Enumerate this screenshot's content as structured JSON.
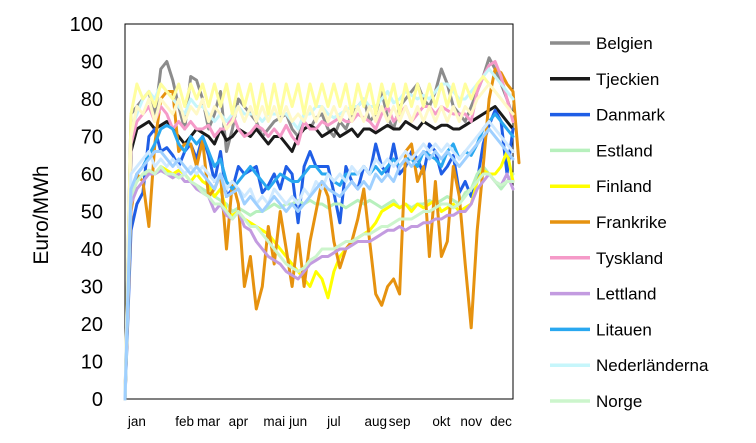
{
  "chart_data": {
    "type": "line",
    "ylabel": "Euro/MWh",
    "xlabel": "",
    "title": "",
    "ylim": [
      0,
      100
    ],
    "yticks": [
      0,
      10,
      20,
      30,
      40,
      50,
      60,
      70,
      80,
      90,
      100
    ],
    "x_points_per_year": 53,
    "x_month_labels": [
      {
        "label": "jan",
        "x": 2
      },
      {
        "label": "feb",
        "x": 10
      },
      {
        "label": "mar",
        "x": 14
      },
      {
        "label": "apr",
        "x": 19
      },
      {
        "label": "mai",
        "x": 25
      },
      {
        "label": "jun",
        "x": 29
      },
      {
        "label": "jul",
        "x": 35
      },
      {
        "label": "aug",
        "x": 42
      },
      {
        "label": "sep",
        "x": 46
      },
      {
        "label": "okt",
        "x": 53
      },
      {
        "label": "nov",
        "x": 58
      },
      {
        "label": "dec",
        "x": 63
      }
    ],
    "legend_position": "right",
    "grid": false,
    "series": [
      {
        "name": "Belgien",
        "color": "#8c8c8c",
        "values": [
          0,
          76,
          78,
          80,
          82,
          75,
          88,
          90,
          85,
          78,
          72,
          86,
          85,
          80,
          72,
          76,
          82,
          66,
          72,
          80,
          78,
          76,
          74,
          70,
          72,
          74,
          75,
          76,
          72,
          70,
          74,
          72,
          75,
          76,
          72,
          70,
          74,
          72,
          76,
          78,
          80,
          74,
          76,
          82,
          75,
          72,
          78,
          80,
          82,
          84,
          80,
          78,
          82,
          88,
          84,
          78,
          76,
          74,
          78,
          82,
          86,
          91,
          88,
          84,
          80,
          75
        ]
      },
      {
        "name": "Tjeckien",
        "color": "#1a1a1a",
        "values": [
          0,
          66,
          72,
          73,
          74,
          72,
          73,
          74,
          72,
          70,
          68,
          70,
          72,
          71,
          70,
          68,
          72,
          69,
          70,
          72,
          71,
          70,
          72,
          70,
          68,
          70,
          70,
          68,
          66,
          70,
          72,
          73,
          72,
          70,
          71,
          72,
          70,
          71,
          72,
          70,
          72,
          72,
          71,
          72,
          73,
          72,
          72,
          74,
          73,
          72,
          74,
          73,
          72,
          73,
          73,
          72,
          72,
          73,
          74,
          75,
          76,
          77,
          78,
          76,
          74,
          72
        ]
      },
      {
        "name": "Danmark",
        "color": "#1f5ee6",
        "values": [
          0,
          45,
          52,
          55,
          70,
          72,
          66,
          67,
          65,
          62,
          66,
          68,
          64,
          70,
          65,
          58,
          66,
          54,
          56,
          62,
          60,
          61,
          62,
          55,
          57,
          60,
          56,
          62,
          60,
          47,
          62,
          66,
          62,
          62,
          62,
          55,
          47,
          62,
          58,
          56,
          62,
          60,
          68,
          62,
          60,
          68,
          60,
          62,
          66,
          64,
          60,
          68,
          66,
          60,
          62,
          65,
          55,
          58,
          54,
          58,
          68,
          73,
          77,
          74,
          60,
          72
        ]
      },
      {
        "name": "Estland",
        "color": "#b7f0bd",
        "values": [
          0,
          55,
          58,
          60,
          60,
          60,
          61,
          60,
          60,
          59,
          60,
          58,
          57,
          56,
          55,
          54,
          53,
          52,
          50,
          51,
          50,
          49,
          50,
          50,
          51,
          52,
          51,
          52,
          52,
          53,
          52,
          53,
          52,
          52,
          51,
          52,
          52,
          51,
          52,
          53,
          52,
          53,
          52,
          51,
          52,
          53,
          51,
          52,
          51,
          52,
          52,
          53,
          52,
          53,
          54,
          53,
          52,
          55,
          56,
          60,
          62,
          60,
          58,
          56,
          58,
          60
        ]
      },
      {
        "name": "Finland",
        "color": "#ffff00",
        "values": [
          0,
          56,
          58,
          60,
          61,
          60,
          62,
          61,
          60,
          61,
          60,
          58,
          60,
          58,
          57,
          54,
          56,
          50,
          49,
          50,
          48,
          47,
          46,
          45,
          44,
          42,
          40,
          38,
          36,
          34,
          32,
          30,
          34,
          32,
          27,
          34,
          38,
          40,
          42,
          43,
          44,
          45,
          47,
          50,
          51,
          52,
          51,
          52,
          50,
          52,
          51,
          52,
          53,
          50,
          51,
          52,
          50,
          51,
          52,
          58,
          61,
          60,
          60,
          62,
          66,
          58
        ]
      },
      {
        "name": "Frankrike",
        "color": "#e6920f",
        "values": [
          0,
          50,
          60,
          58,
          46,
          68,
          80,
          82,
          82,
          66,
          68,
          68,
          62,
          69,
          54,
          56,
          60,
          40,
          58,
          52,
          30,
          38,
          24,
          30,
          46,
          36,
          50,
          40,
          30,
          44,
          30,
          42,
          50,
          58,
          54,
          42,
          35,
          40,
          42,
          48,
          56,
          42,
          28,
          25,
          30,
          32,
          28,
          66,
          68,
          58,
          62,
          38,
          58,
          38,
          42,
          62,
          54,
          36,
          19,
          45,
          62,
          80,
          88,
          87,
          84,
          82,
          63
        ]
      },
      {
        "name": "Tyskland",
        "color": "#f59ac8",
        "values": [
          0,
          68,
          74,
          76,
          78,
          74,
          78,
          76,
          72,
          74,
          72,
          74,
          72,
          72,
          73,
          70,
          72,
          72,
          76,
          72,
          70,
          71,
          73,
          72,
          70,
          72,
          70,
          73,
          70,
          68,
          74,
          72,
          72,
          74,
          73,
          74,
          75,
          74,
          74,
          76,
          75,
          74,
          72,
          76,
          78,
          74,
          76,
          78,
          74,
          76,
          78,
          78,
          76,
          78,
          77,
          76,
          76,
          76,
          74,
          82,
          86,
          89,
          90,
          86,
          80,
          74
        ]
      },
      {
        "name": "Lettland",
        "color": "#c39be0",
        "values": [
          0,
          52,
          56,
          58,
          60,
          60,
          61,
          60,
          59,
          60,
          58,
          58,
          56,
          55,
          54,
          50,
          52,
          49,
          48,
          50,
          46,
          45,
          42,
          40,
          38,
          37,
          36,
          34,
          33,
          32,
          34,
          36,
          37,
          38,
          38,
          39,
          40,
          40,
          41,
          42,
          42,
          42,
          43,
          44,
          45,
          45,
          46,
          45,
          46,
          46,
          47,
          47,
          48,
          48,
          49,
          49,
          50,
          50,
          52,
          56,
          58,
          60,
          58,
          57,
          60,
          56
        ]
      },
      {
        "name": "Litauen",
        "color": "#29a8f0",
        "values": [
          0,
          55,
          60,
          62,
          65,
          68,
          72,
          73,
          72,
          68,
          66,
          70,
          68,
          70,
          66,
          62,
          64,
          58,
          56,
          58,
          60,
          62,
          60,
          58,
          56,
          58,
          60,
          59,
          58,
          58,
          60,
          62,
          62,
          60,
          60,
          58,
          57,
          60,
          60,
          60,
          62,
          60,
          62,
          60,
          62,
          64,
          62,
          64,
          64,
          62,
          66,
          65,
          64,
          62,
          66,
          68,
          64,
          66,
          65,
          68,
          72,
          74,
          76,
          74,
          72,
          70
        ]
      },
      {
        "name": "Nederländerna",
        "color": "#c6f6fb",
        "values": [
          0,
          72,
          76,
          80,
          82,
          80,
          84,
          82,
          80,
          78,
          76,
          80,
          78,
          78,
          76,
          74,
          76,
          74,
          76,
          78,
          76,
          76,
          76,
          74,
          76,
          76,
          76,
          76,
          74,
          72,
          76,
          76,
          78,
          78,
          76,
          75,
          76,
          77,
          78,
          78,
          80,
          78,
          78,
          80,
          82,
          79,
          80,
          82,
          81,
          80,
          81,
          80,
          82,
          84,
          84,
          82,
          80,
          80,
          82,
          84,
          86,
          88,
          86,
          84,
          82,
          80
        ]
      },
      {
        "name": "Norge",
        "color": "#ccf5cc",
        "values": [
          0,
          54,
          58,
          60,
          61,
          60,
          62,
          60,
          60,
          59,
          60,
          58,
          57,
          55,
          54,
          52,
          52,
          50,
          48,
          50,
          48,
          46,
          46,
          44,
          42,
          40,
          38,
          36,
          35,
          34,
          35,
          37,
          38,
          40,
          40,
          40,
          41,
          42,
          42,
          43,
          44,
          44,
          45,
          46,
          46,
          47,
          48,
          48,
          48,
          49,
          50,
          50,
          51,
          52,
          52,
          51,
          52,
          54,
          56,
          58,
          60,
          60,
          58,
          57,
          58,
          58
        ]
      },
      {
        "name": "",
        "color": "#fffe9e",
        "values": [
          0,
          76,
          84,
          80,
          82,
          78,
          84,
          82,
          80,
          84,
          78,
          84,
          80,
          84,
          78,
          84,
          78,
          84,
          76,
          84,
          78,
          84,
          76,
          84,
          76,
          84,
          76,
          84,
          78,
          84,
          76,
          84,
          78,
          84,
          78,
          84,
          78,
          84,
          76,
          84,
          78,
          84,
          76,
          84,
          78,
          84,
          76,
          84,
          78,
          84,
          78,
          84,
          78,
          84,
          78,
          84,
          78,
          84,
          80,
          84,
          86,
          84,
          82,
          80,
          78,
          76
        ]
      },
      {
        "name": "",
        "color": "#fff9c7",
        "values": [
          0,
          70,
          78,
          76,
          80,
          74,
          80,
          78,
          76,
          80,
          74,
          78,
          76,
          80,
          74,
          78,
          76,
          72,
          74,
          78,
          74,
          78,
          74,
          78,
          74,
          78,
          74,
          78,
          74,
          76,
          74,
          78,
          74,
          78,
          74,
          78,
          74,
          78,
          74,
          78,
          74,
          78,
          74,
          78,
          74,
          78,
          74,
          78,
          74,
          78,
          74,
          78,
          74,
          78,
          74,
          78,
          74,
          78,
          76,
          80,
          82,
          84,
          82,
          80,
          78,
          76
        ]
      },
      {
        "name": "",
        "color": "#cfe9ff",
        "values": [
          0,
          60,
          62,
          64,
          66,
          62,
          64,
          62,
          64,
          62,
          60,
          62,
          60,
          62,
          60,
          58,
          60,
          56,
          58,
          56,
          54,
          56,
          52,
          54,
          52,
          56,
          54,
          52,
          54,
          52,
          56,
          54,
          58,
          56,
          60,
          58,
          60,
          58,
          62,
          60,
          62,
          60,
          64,
          62,
          64,
          62,
          64,
          66,
          64,
          66,
          68,
          66,
          68,
          66,
          68,
          66,
          64,
          66,
          68,
          70,
          72,
          74,
          72,
          70,
          68,
          66
        ]
      },
      {
        "name": "",
        "color": "#9fd0ff",
        "values": [
          0,
          56,
          60,
          62,
          64,
          66,
          66,
          64,
          62,
          64,
          62,
          60,
          62,
          60,
          58,
          56,
          60,
          54,
          55,
          56,
          52,
          54,
          52,
          50,
          52,
          54,
          52,
          50,
          52,
          50,
          52,
          54,
          56,
          58,
          56,
          55,
          54,
          56,
          58,
          56,
          58,
          56,
          60,
          58,
          60,
          58,
          62,
          64,
          62,
          64,
          66,
          64,
          66,
          64,
          66,
          64,
          62,
          64,
          66,
          68,
          70,
          72,
          70,
          68,
          66,
          64
        ]
      }
    ],
    "legend": [
      "Belgien",
      "Tjeckien",
      "Danmark",
      "Estland",
      "Finland",
      "Frankrike",
      "Tyskland",
      "Lettland",
      "Litauen",
      "Nederländerna",
      "Norge"
    ]
  }
}
